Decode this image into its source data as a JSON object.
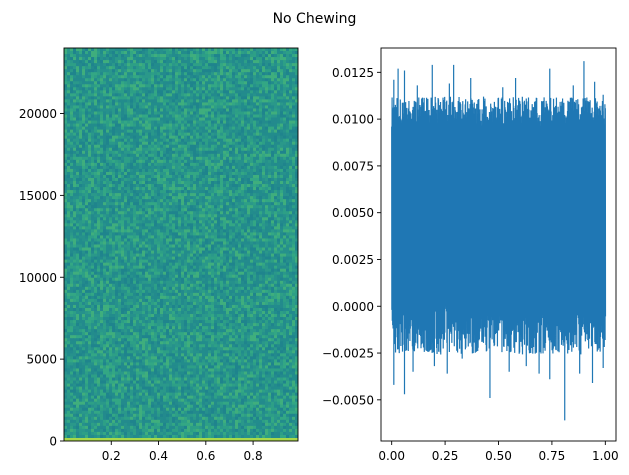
{
  "figure": {
    "title": "No Chewing",
    "background": "#ffffff"
  },
  "chart_data": [
    {
      "type": "heatmap",
      "title": "",
      "xlabel": "",
      "ylabel": "",
      "xlim": [
        0.0,
        0.99
      ],
      "ylim": [
        0,
        24000
      ],
      "xticks": [
        0.2,
        0.4,
        0.6,
        0.8
      ],
      "xtick_labels": [
        "0.2",
        "0.4",
        "0.6",
        "0.8"
      ],
      "yticks": [
        0,
        5000,
        10000,
        15000,
        20000
      ],
      "ytick_labels": [
        "0",
        "5000",
        "10000",
        "15000",
        "20000"
      ],
      "colormap": "viridis",
      "dominant_color": "#2a9a87",
      "low_frequency_band_color": "#a8d84a",
      "grid": false,
      "description_values": {
        "frequency_max": 24000,
        "time_max": 0.99
      }
    },
    {
      "type": "line",
      "title": "",
      "xlabel": "",
      "ylabel": "",
      "xlim": [
        -0.05,
        1.05
      ],
      "ylim": [
        -0.0072,
        0.0138
      ],
      "xticks": [
        0.0,
        0.25,
        0.5,
        0.75,
        1.0
      ],
      "xtick_labels": [
        "0.00",
        "0.25",
        "0.50",
        "0.75",
        "1.00"
      ],
      "yticks": [
        -0.005,
        -0.0025,
        0.0,
        0.0025,
        0.005,
        0.0075,
        0.01,
        0.0125
      ],
      "ytick_labels": [
        "−0.0050",
        "−0.0025",
        "0.0000",
        "0.0025",
        "0.0050",
        "0.0075",
        "0.0100",
        "0.0125"
      ],
      "series_color": "#1f77b4",
      "grid": false,
      "signal": {
        "x_start": 0.0,
        "x_end": 1.0,
        "mean": 0.0045,
        "dense_band_low": 0.0,
        "dense_band_high": 0.0095,
        "max": 0.0131,
        "min": -0.0061,
        "peaks": [
          {
            "x": 0.01,
            "y": 0.0121
          },
          {
            "x": 0.03,
            "y": 0.0127
          },
          {
            "x": 0.06,
            "y": 0.0126
          },
          {
            "x": 0.12,
            "y": 0.0118
          },
          {
            "x": 0.19,
            "y": 0.0129
          },
          {
            "x": 0.27,
            "y": 0.0119
          },
          {
            "x": 0.29,
            "y": 0.0129
          },
          {
            "x": 0.37,
            "y": 0.0122
          },
          {
            "x": 0.43,
            "y": 0.0112
          },
          {
            "x": 0.52,
            "y": 0.0117
          },
          {
            "x": 0.58,
            "y": 0.0122
          },
          {
            "x": 0.63,
            "y": 0.0111
          },
          {
            "x": 0.74,
            "y": 0.0127
          },
          {
            "x": 0.8,
            "y": 0.0111
          },
          {
            "x": 0.85,
            "y": 0.0118
          },
          {
            "x": 0.9,
            "y": 0.0131
          },
          {
            "x": 0.95,
            "y": 0.012
          },
          {
            "x": 0.99,
            "y": 0.0113
          }
        ],
        "troughs": [
          {
            "x": 0.01,
            "y": -0.0042
          },
          {
            "x": 0.06,
            "y": -0.0047
          },
          {
            "x": 0.1,
            "y": -0.0035
          },
          {
            "x": 0.2,
            "y": -0.0032
          },
          {
            "x": 0.26,
            "y": -0.0036
          },
          {
            "x": 0.33,
            "y": -0.0028
          },
          {
            "x": 0.46,
            "y": -0.0049
          },
          {
            "x": 0.55,
            "y": -0.0035
          },
          {
            "x": 0.63,
            "y": -0.0032
          },
          {
            "x": 0.69,
            "y": -0.0036
          },
          {
            "x": 0.74,
            "y": -0.0039
          },
          {
            "x": 0.81,
            "y": -0.0061
          },
          {
            "x": 0.88,
            "y": -0.0036
          },
          {
            "x": 0.94,
            "y": -0.0041
          },
          {
            "x": 0.99,
            "y": -0.0033
          }
        ]
      }
    }
  ]
}
